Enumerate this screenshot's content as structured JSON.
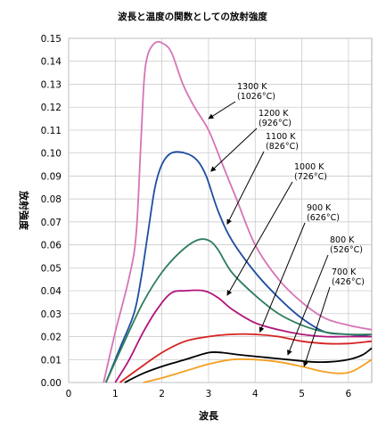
{
  "chart_data": {
    "type": "line",
    "title": "波長と温度の関数としての放射強度",
    "xlabel": "波長",
    "ylabel": "放射強度",
    "xlim": [
      0,
      6.5
    ],
    "ylim": [
      0,
      0.15
    ],
    "xticks": [
      "0",
      "1",
      "2",
      "3",
      "4",
      "5",
      "6"
    ],
    "yticks": [
      "0.00",
      "0.01",
      "0.02",
      "0.03",
      "0.04",
      "0.05",
      "0.06",
      "0.07",
      "0.08",
      "0.09",
      "0.10",
      "0.11",
      "0.12",
      "0.13",
      "0.14",
      "0.15"
    ],
    "grid": true,
    "series": [
      {
        "label_lines": [
          "1300 K",
          "(1026°C)"
        ],
        "color": "#d674b5",
        "points": [
          [
            0.75,
            0
          ],
          [
            1.0,
            0.022
          ],
          [
            1.3,
            0.046
          ],
          [
            1.45,
            0.065
          ],
          [
            1.55,
            0.105
          ],
          [
            1.62,
            0.132
          ],
          [
            1.7,
            0.143
          ],
          [
            1.85,
            0.148
          ],
          [
            2.0,
            0.148
          ],
          [
            2.2,
            0.144
          ],
          [
            2.45,
            0.13
          ],
          [
            2.7,
            0.12
          ],
          [
            3.0,
            0.11
          ],
          [
            3.3,
            0.095
          ],
          [
            3.6,
            0.08
          ],
          [
            4.0,
            0.06
          ],
          [
            4.5,
            0.045
          ],
          [
            5.0,
            0.035
          ],
          [
            5.5,
            0.028
          ],
          [
            6.0,
            0.025
          ],
          [
            6.5,
            0.023
          ]
        ]
      },
      {
        "label_lines": [
          "1200 K",
          "(926°C)"
        ],
        "color": "#1f4ea1",
        "points": [
          [
            0.8,
            0
          ],
          [
            1.1,
            0.015
          ],
          [
            1.4,
            0.03
          ],
          [
            1.55,
            0.045
          ],
          [
            1.7,
            0.065
          ],
          [
            1.85,
            0.085
          ],
          [
            2.0,
            0.095
          ],
          [
            2.2,
            0.1
          ],
          [
            2.5,
            0.1
          ],
          [
            2.75,
            0.097
          ],
          [
            2.95,
            0.09
          ],
          [
            3.2,
            0.075
          ],
          [
            3.5,
            0.062
          ],
          [
            4.0,
            0.048
          ],
          [
            4.5,
            0.037
          ],
          [
            5.0,
            0.028
          ],
          [
            5.5,
            0.022
          ],
          [
            6.0,
            0.021
          ],
          [
            6.5,
            0.02
          ]
        ]
      },
      {
        "label_lines": [
          "1100 K",
          "(826°C)"
        ],
        "color": "#2e7d5b",
        "points": [
          [
            0.8,
            0
          ],
          [
            1.2,
            0.018
          ],
          [
            1.6,
            0.035
          ],
          [
            2.0,
            0.048
          ],
          [
            2.4,
            0.057
          ],
          [
            2.75,
            0.062
          ],
          [
            3.0,
            0.062
          ],
          [
            3.2,
            0.058
          ],
          [
            3.5,
            0.048
          ],
          [
            4.0,
            0.038
          ],
          [
            4.5,
            0.03
          ],
          [
            5.0,
            0.025
          ],
          [
            5.5,
            0.022
          ],
          [
            6.0,
            0.021
          ],
          [
            6.5,
            0.021
          ]
        ]
      },
      {
        "label_lines": [
          "1000 K",
          "(726°C)"
        ],
        "color": "#b0157a",
        "points": [
          [
            1.0,
            0
          ],
          [
            1.3,
            0.01
          ],
          [
            1.6,
            0.022
          ],
          [
            1.9,
            0.032
          ],
          [
            2.2,
            0.039
          ],
          [
            2.5,
            0.04
          ],
          [
            2.9,
            0.04
          ],
          [
            3.2,
            0.037
          ],
          [
            3.5,
            0.032
          ],
          [
            4.0,
            0.026
          ],
          [
            4.5,
            0.023
          ],
          [
            5.0,
            0.021
          ],
          [
            5.5,
            0.02
          ],
          [
            6.0,
            0.02
          ],
          [
            6.5,
            0.02
          ]
        ]
      },
      {
        "label_lines": [
          "900 K",
          "(626°C)"
        ],
        "color": "#d62020",
        "points": [
          [
            1.1,
            0
          ],
          [
            1.5,
            0.006
          ],
          [
            2.0,
            0.013
          ],
          [
            2.5,
            0.018
          ],
          [
            3.0,
            0.02
          ],
          [
            3.5,
            0.021
          ],
          [
            4.0,
            0.021
          ],
          [
            4.5,
            0.02
          ],
          [
            5.0,
            0.018
          ],
          [
            5.5,
            0.017
          ],
          [
            6.0,
            0.017
          ],
          [
            6.5,
            0.018
          ]
        ]
      },
      {
        "label_lines": [
          "800 K",
          "(526°C)"
        ],
        "color": "#000000",
        "points": [
          [
            1.2,
            0
          ],
          [
            1.6,
            0.004
          ],
          [
            2.0,
            0.007
          ],
          [
            2.5,
            0.01
          ],
          [
            3.0,
            0.013
          ],
          [
            3.3,
            0.013
          ],
          [
            3.7,
            0.012
          ],
          [
            4.2,
            0.011
          ],
          [
            4.7,
            0.01
          ],
          [
            5.2,
            0.009
          ],
          [
            5.6,
            0.009
          ],
          [
            6.0,
            0.01
          ],
          [
            6.3,
            0.012
          ],
          [
            6.5,
            0.015
          ]
        ]
      },
      {
        "label_lines": [
          "700 K",
          "(426°C)"
        ],
        "color": "#f4a021",
        "points": [
          [
            1.6,
            0
          ],
          [
            2.0,
            0.002
          ],
          [
            2.5,
            0.005
          ],
          [
            3.0,
            0.008
          ],
          [
            3.5,
            0.01
          ],
          [
            4.0,
            0.01
          ],
          [
            4.5,
            0.009
          ],
          [
            5.0,
            0.007
          ],
          [
            5.4,
            0.005
          ],
          [
            5.8,
            0.004
          ],
          [
            6.1,
            0.005
          ],
          [
            6.5,
            0.01
          ]
        ]
      }
    ],
    "annotations": [
      {
        "lines": [
          "1300 K",
          "(1026°C)"
        ],
        "arrow_to": [
          3.0,
          0.115
        ]
      },
      {
        "lines": [
          "1200 K",
          "(926°C)"
        ],
        "arrow_to": [
          3.05,
          0.092
        ]
      },
      {
        "lines": [
          "1100 K",
          "(826°C)"
        ],
        "arrow_to": [
          3.4,
          0.069
        ]
      },
      {
        "lines": [
          "1000 K",
          "(726°C)"
        ],
        "arrow_to": [
          3.4,
          0.038
        ]
      },
      {
        "lines": [
          "900 K",
          "(626°C)"
        ],
        "arrow_to": [
          4.1,
          0.022
        ]
      },
      {
        "lines": [
          "800 K",
          "(526°C)"
        ],
        "arrow_to": [
          4.7,
          0.012
        ]
      },
      {
        "lines": [
          "700 K",
          "(426°C)"
        ],
        "arrow_to": [
          5.05,
          0.007
        ]
      }
    ]
  }
}
